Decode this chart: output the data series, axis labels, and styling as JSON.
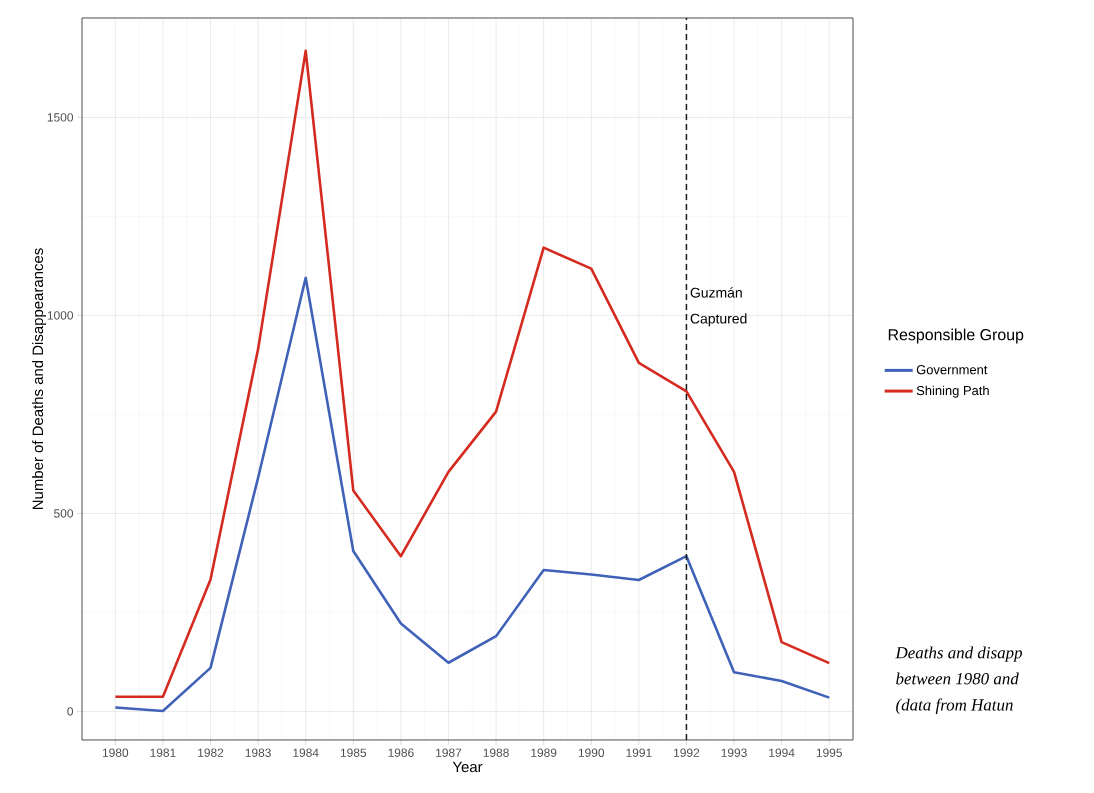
{
  "chart_data": {
    "type": "line",
    "xlabel": "Year",
    "ylabel": "Number of Deaths and Disappearances",
    "legend_title": "Responsible Group",
    "x": [
      1980,
      1981,
      1982,
      1983,
      1984,
      1985,
      1986,
      1987,
      1988,
      1989,
      1990,
      1991,
      1992,
      1993,
      1994,
      1995
    ],
    "series": [
      {
        "name": "Government",
        "color": "#3f62b8",
        "values": [
          10,
          1,
          110,
          590,
          1095,
          405,
          222,
          123,
          190,
          357,
          346,
          332,
          392,
          99,
          77,
          35
        ]
      },
      {
        "name": "Shining Path",
        "color": "#d42a20",
        "values": [
          37,
          37,
          333,
          915,
          1668,
          558,
          392,
          605,
          757,
          1171,
          1118,
          880,
          808,
          605,
          175,
          122
        ]
      }
    ],
    "xlim": [
      1979.3,
      1995.5
    ],
    "ylim": [
      -72,
      1751
    ],
    "xticks": [
      1980,
      1981,
      1982,
      1983,
      1984,
      1985,
      1986,
      1987,
      1988,
      1989,
      1990,
      1991,
      1992,
      1993,
      1994,
      1995
    ],
    "yticks": [
      0,
      500,
      1000,
      1500
    ],
    "ref_lines": [
      {
        "axis": "x",
        "value": 1992,
        "label": "Guzmán Captured",
        "color": "#1a1a1a",
        "line_style": "dashed"
      }
    ],
    "grid": true,
    "legend": "right",
    "marker": "none",
    "line_style": "solid",
    "annotations": [
      "Deaths and disapp",
      "between 1980 and",
      "(data from Hatun"
    ]
  }
}
